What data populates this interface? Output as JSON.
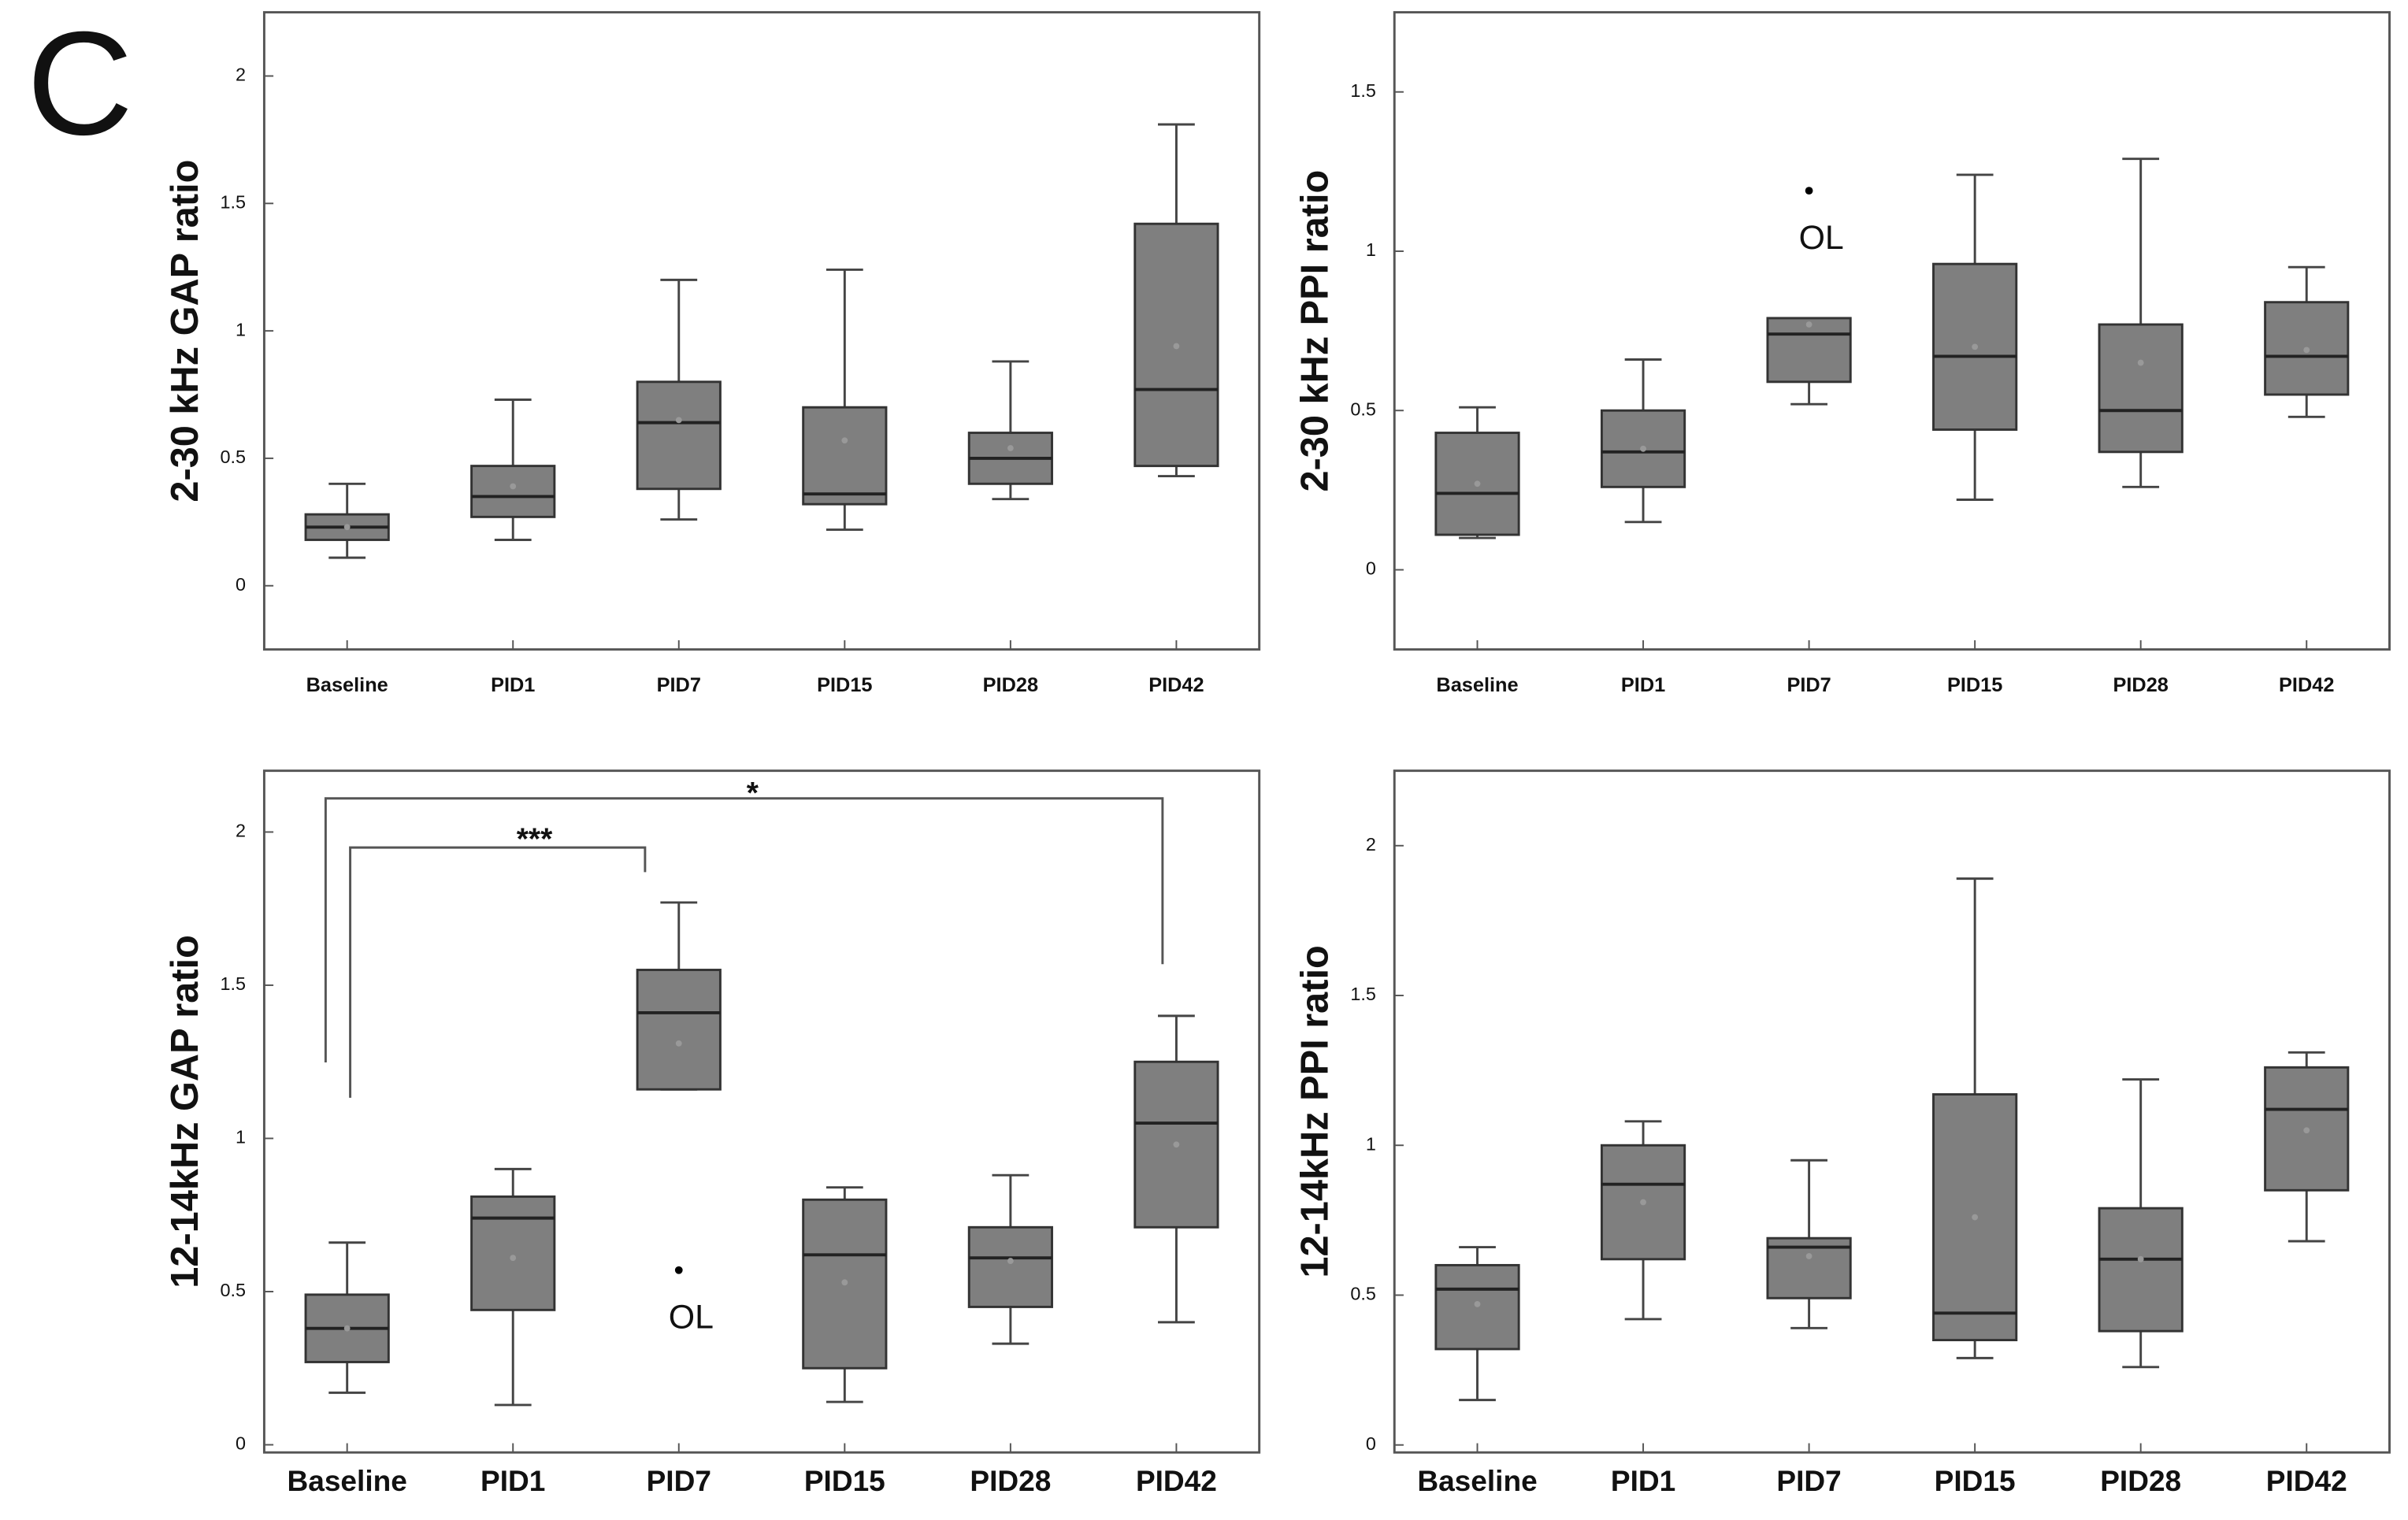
{
  "panel_label": "C",
  "chart_data": [
    {
      "type": "box",
      "ylabel": "2-30 kHz GAP ratio",
      "categories": [
        "Baseline",
        "PID1",
        "PID7",
        "PID15",
        "PID28",
        "PID42"
      ],
      "ylim": [
        -0.25,
        2.25
      ],
      "yticks": [
        0,
        0.5,
        1,
        1.5,
        2
      ],
      "series": [
        {
          "color": "#7f7f7f",
          "low": [
            0.11,
            0.18,
            0.26,
            0.22,
            0.34,
            0.43
          ],
          "q1": [
            0.18,
            0.27,
            0.38,
            0.32,
            0.4,
            0.47
          ],
          "median": [
            0.23,
            0.35,
            0.64,
            0.36,
            0.5,
            0.77
          ],
          "q3": [
            0.28,
            0.47,
            0.8,
            0.7,
            0.6,
            1.42
          ],
          "high": [
            0.4,
            0.73,
            1.2,
            1.24,
            0.88,
            1.81
          ],
          "mean": [
            0.23,
            0.39,
            0.65,
            0.57,
            0.54,
            0.94
          ]
        }
      ],
      "outliers": []
    },
    {
      "type": "box",
      "ylabel": "2-30 kHz PPI ratio",
      "categories": [
        "Baseline",
        "PID1",
        "PID7",
        "PID15",
        "PID28",
        "PID42"
      ],
      "ylim": [
        -0.25,
        1.75
      ],
      "yticks": [
        0,
        0.5,
        1,
        1.5
      ],
      "series": [
        {
          "color": "#7f7f7f",
          "low": [
            0.1,
            0.15,
            0.52,
            0.22,
            0.26,
            0.48
          ],
          "q1": [
            0.11,
            0.26,
            0.59,
            0.44,
            0.37,
            0.55
          ],
          "median": [
            0.24,
            0.37,
            0.74,
            0.67,
            0.5,
            0.67
          ],
          "q3": [
            0.43,
            0.5,
            0.79,
            0.96,
            0.77,
            0.84
          ],
          "high": [
            0.51,
            0.66,
            0.79,
            1.24,
            1.29,
            0.95
          ],
          "mean": [
            0.27,
            0.38,
            0.77,
            0.7,
            0.65,
            0.69
          ]
        }
      ],
      "outliers": [
        {
          "category": 2,
          "value": 1.19,
          "label": "OL"
        }
      ]
    },
    {
      "type": "box",
      "ylabel": "12-14kHz GAP ratio",
      "categories": [
        "Baseline",
        "PID1",
        "PID7",
        "PID15",
        "PID28",
        "PID42"
      ],
      "ylim": [
        -0.025,
        2.2
      ],
      "yticks": [
        0,
        0.5,
        1,
        1.5,
        2
      ],
      "series": [
        {
          "color": "#7f7f7f",
          "low": [
            0.17,
            0.13,
            1.16,
            0.14,
            0.33,
            0.4
          ],
          "q1": [
            0.27,
            0.44,
            1.16,
            0.25,
            0.45,
            0.71
          ],
          "median": [
            0.38,
            0.74,
            1.41,
            0.62,
            0.61,
            1.05
          ],
          "q3": [
            0.49,
            0.81,
            1.55,
            0.8,
            0.71,
            1.25
          ],
          "high": [
            0.66,
            0.9,
            1.77,
            0.84,
            0.88,
            1.4
          ],
          "mean": [
            0.38,
            0.61,
            1.31,
            0.53,
            0.6,
            0.98
          ]
        }
      ],
      "outliers": [
        {
          "category": 2,
          "value": 0.57,
          "label": "OL"
        }
      ],
      "significance": [
        "***",
        "*"
      ]
    },
    {
      "type": "box",
      "ylabel": "12-14kHz PPI ratio",
      "categories": [
        "Baseline",
        "PID1",
        "PID7",
        "PID15",
        "PID28",
        "PID42"
      ],
      "ylim": [
        -0.025,
        2.25
      ],
      "yticks": [
        0,
        0.5,
        1,
        1.5,
        2
      ],
      "series": [
        {
          "color": "#7f7f7f",
          "low": [
            0.15,
            0.42,
            0.39,
            0.29,
            0.26,
            0.68
          ],
          "q1": [
            0.32,
            0.62,
            0.49,
            0.35,
            0.38,
            0.85
          ],
          "median": [
            0.52,
            0.87,
            0.66,
            0.44,
            0.62,
            1.12
          ],
          "q3": [
            0.6,
            1.0,
            0.69,
            1.17,
            0.79,
            1.26
          ],
          "high": [
            0.66,
            1.08,
            0.95,
            1.89,
            1.22,
            1.31
          ],
          "mean": [
            0.47,
            0.81,
            0.63,
            0.76,
            0.62,
            1.05
          ]
        }
      ],
      "outliers": []
    }
  ]
}
